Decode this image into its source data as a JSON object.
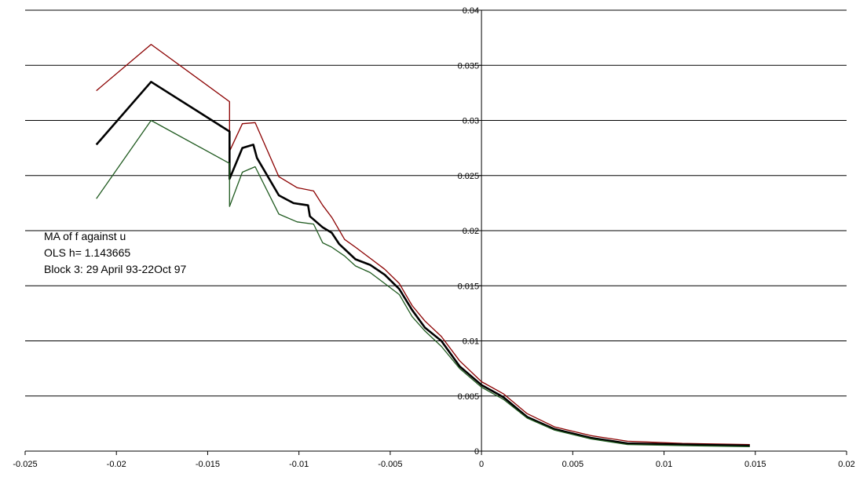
{
  "chart_data": {
    "type": "line",
    "title": "",
    "xlabel": "",
    "ylabel": "",
    "xlim": [
      -0.025,
      0.02
    ],
    "ylim": [
      0,
      0.04
    ],
    "x_ticks": [
      "-0.025",
      "-0.02",
      "-0.015",
      "-0.01",
      "-0.005",
      "0",
      "0.005",
      "0.01",
      "0.015",
      "0.02"
    ],
    "y_ticks": [
      "0",
      "0.005",
      "0.01",
      "0.015",
      "0.02",
      "0.025",
      "0.03",
      "0.035",
      "0.04"
    ],
    "grid": "horizontal",
    "legend": "none",
    "annotation": [
      "MA of f against u",
      "OLS h= 1.143665",
      "Block 3: 29 April 93-22Oct 97"
    ],
    "colors": {
      "upper": "#8b0000",
      "middle": "#000000",
      "lower": "#1f5a1f"
    },
    "series": [
      {
        "color": "#8b0000",
        "points": [
          [
            -0.0211,
            0.0327
          ],
          [
            -0.0181,
            0.0369
          ],
          [
            -0.0138,
            0.0317
          ],
          [
            -0.0138,
            0.0272
          ],
          [
            -0.0131,
            0.0297
          ],
          [
            -0.0124,
            0.0298
          ],
          [
            -0.0111,
            0.0249
          ],
          [
            -0.0101,
            0.0239
          ],
          [
            -0.0092,
            0.0236
          ],
          [
            -0.0087,
            0.0223
          ],
          [
            -0.0082,
            0.0212
          ],
          [
            -0.0075,
            0.0192
          ],
          [
            -0.0069,
            0.0185
          ],
          [
            -0.0061,
            0.0175
          ],
          [
            -0.0053,
            0.0165
          ],
          [
            -0.0045,
            0.0152
          ],
          [
            -0.0038,
            0.0132
          ],
          [
            -0.0031,
            0.0118
          ],
          [
            -0.0022,
            0.0104
          ],
          [
            -0.0012,
            0.0082
          ],
          [
            0,
            0.0063
          ],
          [
            0.0012,
            0.0052
          ],
          [
            0.0025,
            0.0034
          ],
          [
            0.004,
            0.0022
          ],
          [
            0.006,
            0.0014
          ],
          [
            0.008,
            0.0009
          ],
          [
            0.011,
            0.0007
          ],
          [
            0.0147,
            0.0006
          ]
        ]
      },
      {
        "color": "#000000",
        "points": [
          [
            -0.0211,
            0.0278
          ],
          [
            -0.0181,
            0.0335
          ],
          [
            -0.0138,
            0.029
          ],
          [
            -0.0138,
            0.0247
          ],
          [
            -0.0131,
            0.0275
          ],
          [
            -0.0125,
            0.0278
          ],
          [
            -0.0123,
            0.0266
          ],
          [
            -0.0111,
            0.0232
          ],
          [
            -0.0103,
            0.0225
          ],
          [
            -0.0095,
            0.0223
          ],
          [
            -0.0094,
            0.0213
          ],
          [
            -0.0087,
            0.0203
          ],
          [
            -0.0082,
            0.0198
          ],
          [
            -0.0078,
            0.0188
          ],
          [
            -0.0069,
            0.0174
          ],
          [
            -0.0061,
            0.0169
          ],
          [
            -0.0053,
            0.016
          ],
          [
            -0.0045,
            0.0147
          ],
          [
            -0.0038,
            0.0128
          ],
          [
            -0.0031,
            0.0112
          ],
          [
            -0.0022,
            0.01
          ],
          [
            -0.0012,
            0.0077
          ],
          [
            0,
            0.006
          ],
          [
            0.0012,
            0.0049
          ],
          [
            0.0025,
            0.0031
          ],
          [
            0.004,
            0.002
          ],
          [
            0.006,
            0.0012
          ],
          [
            0.008,
            0.0007
          ],
          [
            0.011,
            0.0006
          ],
          [
            0.0147,
            0.0005
          ]
        ]
      },
      {
        "color": "#1f5a1f",
        "points": [
          [
            -0.0211,
            0.0229
          ],
          [
            -0.0181,
            0.03
          ],
          [
            -0.0138,
            0.0261
          ],
          [
            -0.0138,
            0.0222
          ],
          [
            -0.0131,
            0.0253
          ],
          [
            -0.0124,
            0.0258
          ],
          [
            -0.0111,
            0.0215
          ],
          [
            -0.0101,
            0.0208
          ],
          [
            -0.0092,
            0.0206
          ],
          [
            -0.0087,
            0.0189
          ],
          [
            -0.0082,
            0.0185
          ],
          [
            -0.0075,
            0.0177
          ],
          [
            -0.0069,
            0.0168
          ],
          [
            -0.0061,
            0.0162
          ],
          [
            -0.0053,
            0.0152
          ],
          [
            -0.0045,
            0.0142
          ],
          [
            -0.0038,
            0.0122
          ],
          [
            -0.0031,
            0.0109
          ],
          [
            -0.0022,
            0.0095
          ],
          [
            -0.0012,
            0.0075
          ],
          [
            0,
            0.0058
          ],
          [
            0.0012,
            0.0047
          ],
          [
            0.0025,
            0.003
          ],
          [
            0.004,
            0.0019
          ],
          [
            0.006,
            0.0011
          ],
          [
            0.008,
            0.0006
          ],
          [
            0.011,
            0.0005
          ],
          [
            0.0147,
            0.0004
          ]
        ]
      }
    ]
  }
}
